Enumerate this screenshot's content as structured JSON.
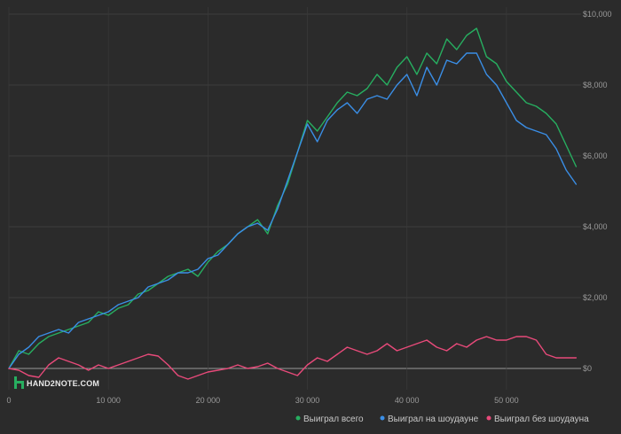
{
  "logo": {
    "text": "HAND2NOTE.COM"
  },
  "chart_data": {
    "type": "line",
    "xlim": [
      0,
      57500
    ],
    "ylim": [
      -600,
      10200
    ],
    "grid": true,
    "legend_position": "bottom-right",
    "x_ticks": [
      {
        "value": 0,
        "label": "0"
      },
      {
        "value": 10000,
        "label": "10 000"
      },
      {
        "value": 20000,
        "label": "20 000"
      },
      {
        "value": 30000,
        "label": "30 000"
      },
      {
        "value": 40000,
        "label": "40 000"
      },
      {
        "value": 50000,
        "label": "50 000"
      }
    ],
    "y_ticks": [
      {
        "value": 0,
        "label": "$0"
      },
      {
        "value": 2000,
        "label": "$2,000"
      },
      {
        "value": 4000,
        "label": "$4,000"
      },
      {
        "value": 6000,
        "label": "$6,000"
      },
      {
        "value": 8000,
        "label": "$8,000"
      },
      {
        "value": 10000,
        "label": "$10,000"
      }
    ],
    "series": [
      {
        "name": "Выиграл всего",
        "color": "#27ae60",
        "x": [
          0,
          1000,
          2000,
          3000,
          4000,
          5000,
          6000,
          7000,
          8000,
          9000,
          10000,
          11000,
          12000,
          13000,
          14000,
          15000,
          16000,
          17000,
          18000,
          19000,
          20000,
          21000,
          22000,
          23000,
          24000,
          25000,
          26000,
          27000,
          28000,
          29000,
          30000,
          31000,
          32000,
          33000,
          34000,
          35000,
          36000,
          37000,
          38000,
          39000,
          40000,
          41000,
          42000,
          43000,
          44000,
          45000,
          46000,
          47000,
          48000,
          49000,
          50000,
          51000,
          52000,
          53000,
          54000,
          55000,
          56000,
          57000
        ],
        "y": [
          0,
          500,
          400,
          700,
          900,
          1000,
          1100,
          1200,
          1300,
          1600,
          1500,
          1700,
          1800,
          2100,
          2200,
          2400,
          2600,
          2700,
          2800,
          2600,
          3000,
          3300,
          3500,
          3800,
          4000,
          4200,
          3800,
          4600,
          5200,
          6100,
          7000,
          6700,
          7100,
          7500,
          7800,
          7700,
          7900,
          8300,
          8000,
          8500,
          8800,
          8300,
          8900,
          8600,
          9300,
          9000,
          9400,
          9600,
          8800,
          8600,
          8100,
          7800,
          7500,
          7400,
          7200,
          6900,
          6300,
          5700
        ]
      },
      {
        "name": "Выиграл на шоудауне",
        "color": "#3a8ee6",
        "x": [
          0,
          1000,
          2000,
          3000,
          4000,
          5000,
          6000,
          7000,
          8000,
          9000,
          10000,
          11000,
          12000,
          13000,
          14000,
          15000,
          16000,
          17000,
          18000,
          19000,
          20000,
          21000,
          22000,
          23000,
          24000,
          25000,
          26000,
          27000,
          28000,
          29000,
          30000,
          31000,
          32000,
          33000,
          34000,
          35000,
          36000,
          37000,
          38000,
          39000,
          40000,
          41000,
          42000,
          43000,
          44000,
          45000,
          46000,
          47000,
          48000,
          49000,
          50000,
          51000,
          52000,
          53000,
          54000,
          55000,
          56000,
          57000
        ],
        "y": [
          0,
          400,
          600,
          900,
          1000,
          1100,
          1000,
          1300,
          1400,
          1500,
          1600,
          1800,
          1900,
          2000,
          2300,
          2400,
          2500,
          2700,
          2700,
          2800,
          3100,
          3200,
          3500,
          3800,
          4000,
          4100,
          3900,
          4500,
          5300,
          6100,
          6900,
          6400,
          7000,
          7300,
          7500,
          7200,
          7600,
          7700,
          7600,
          8000,
          8300,
          7700,
          8500,
          8000,
          8700,
          8600,
          8900,
          8900,
          8300,
          8000,
          7500,
          7000,
          6800,
          6700,
          6600,
          6200,
          5600,
          5200
        ]
      },
      {
        "name": "Выиграл без шоудауна",
        "color": "#e84a7a",
        "x": [
          0,
          1000,
          2000,
          3000,
          4000,
          5000,
          6000,
          7000,
          8000,
          9000,
          10000,
          11000,
          12000,
          13000,
          14000,
          15000,
          16000,
          17000,
          18000,
          19000,
          20000,
          21000,
          22000,
          23000,
          24000,
          25000,
          26000,
          27000,
          28000,
          29000,
          30000,
          31000,
          32000,
          33000,
          34000,
          35000,
          36000,
          37000,
          38000,
          39000,
          40000,
          41000,
          42000,
          43000,
          44000,
          45000,
          46000,
          47000,
          48000,
          49000,
          50000,
          51000,
          52000,
          53000,
          54000,
          55000,
          56000,
          57000
        ],
        "y": [
          0,
          -50,
          -200,
          -250,
          100,
          300,
          200,
          100,
          -50,
          100,
          0,
          100,
          200,
          300,
          400,
          350,
          100,
          -200,
          -300,
          -200,
          -100,
          -50,
          0,
          100,
          0,
          50,
          150,
          0,
          -100,
          -200,
          100,
          300,
          200,
          400,
          600,
          500,
          400,
          500,
          700,
          500,
          600,
          700,
          800,
          600,
          500,
          700,
          600,
          800,
          900,
          800,
          800,
          900,
          900,
          800,
          400,
          300,
          300,
          300
        ]
      }
    ]
  }
}
